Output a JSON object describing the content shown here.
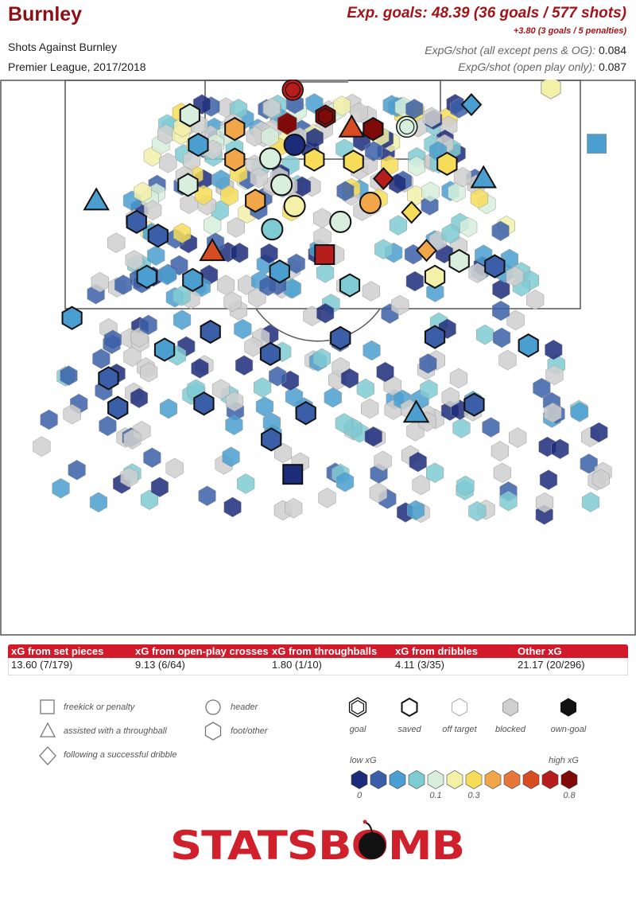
{
  "header": {
    "team": "Burnley",
    "subtitle": "Shots Against Burnley",
    "competition": "Premier League, 2017/2018",
    "xg_summary": "Exp. goals: 48.39 (36 goals / 577 shots)",
    "pens_summary": "+3.80 (3 goals / 5 penalties)",
    "rate_all_label": "ExpG/shot (all except pens & OG):",
    "rate_all_value": "0.084",
    "rate_open_label": "ExpG/shot (open play only):",
    "rate_open_value": "0.087"
  },
  "breakdown": {
    "columns": [
      {
        "label": "xG from set pieces",
        "value": "13.60 (7/179)"
      },
      {
        "label": "xG from open-play crosses",
        "value": "9.13 (6/64)"
      },
      {
        "label": "xG from throughballs",
        "value": "1.80 (1/10)"
      },
      {
        "label": "xG from dribbles",
        "value": "4.11 (3/35)"
      },
      {
        "label": "Other xG",
        "value": "21.17 (20/296)"
      }
    ]
  },
  "legend": {
    "shapes": {
      "freekick": "freekick or penalty",
      "throughball": "assisted with a throughball",
      "dribble": "following a successful dribble",
      "header": "header",
      "foot": "foot/other"
    },
    "outcomes": [
      "goal",
      "saved",
      "off target",
      "blocked",
      "own-goal"
    ],
    "scale": {
      "low_label": "low xG",
      "high_label": "high xG",
      "colors": [
        "#1c2b7a",
        "#3a5fa8",
        "#4a9fd0",
        "#7fcbd4",
        "#d7efdc",
        "#f3f0a8",
        "#f6dc58",
        "#f2a64a",
        "#e7763a",
        "#d84c22",
        "#b71d1d",
        "#7e0a0a"
      ],
      "tick_labels": [
        "0",
        "0.1",
        "0.3",
        "0.8"
      ]
    }
  },
  "chart_data": {
    "type": "scatter",
    "title": "Shots Against Burnley",
    "description_units": "shot locations in opponent half; x = metres from left touchline (0-68), y = metres from goal line (0-52.5)",
    "xlim": [
      0,
      68
    ],
    "ylim": [
      0,
      52.5
    ],
    "shots": [
      {
        "x": 31.3,
        "y": 0.9,
        "xg": 0.75,
        "shape": "header",
        "outcome": "goal"
      },
      {
        "x": 34.8,
        "y": 3.4,
        "xg": 0.85,
        "shape": "foot",
        "outcome": "goal"
      },
      {
        "x": 37.6,
        "y": 4.5,
        "xg": 0.65,
        "shape": "throughball",
        "outcome": "saved"
      },
      {
        "x": 39.9,
        "y": 4.6,
        "xg": 0.9,
        "shape": "foot",
        "outcome": "saved"
      },
      {
        "x": 30.7,
        "y": 4.1,
        "xg": 0.85,
        "shape": "foot",
        "outcome": "blocked"
      },
      {
        "x": 43.5,
        "y": 4.4,
        "xg": 0.12,
        "shape": "header",
        "outcome": "goal"
      },
      {
        "x": 31.5,
        "y": 6.1,
        "xg": 0.01,
        "shape": "header",
        "outcome": "saved"
      },
      {
        "x": 41.0,
        "y": 9.3,
        "xg": 0.7,
        "shape": "dribble",
        "outcome": "saved"
      },
      {
        "x": 34.7,
        "y": 16.5,
        "xg": 0.8,
        "shape": "freekick",
        "outcome": "saved"
      },
      {
        "x": 10.3,
        "y": 11.4,
        "xg": 0.04,
        "shape": "throughball",
        "outcome": "saved"
      },
      {
        "x": 22.7,
        "y": 16.2,
        "xg": 0.55,
        "shape": "throughball",
        "outcome": "saved"
      },
      {
        "x": 51.7,
        "y": 9.3,
        "xg": 0.06,
        "shape": "throughball",
        "outcome": "saved"
      },
      {
        "x": 45.6,
        "y": 16.1,
        "xg": 0.35,
        "shape": "dribble",
        "outcome": "saved"
      },
      {
        "x": 44.0,
        "y": 12.5,
        "xg": 0.25,
        "shape": "dribble",
        "outcome": "saved"
      },
      {
        "x": 50.4,
        "y": 2.3,
        "xg": 0.05,
        "shape": "dribble",
        "outcome": "saved"
      },
      {
        "x": 58.9,
        "y": 0.7,
        "xg": 0.18,
        "shape": "foot",
        "outcome": "off target"
      },
      {
        "x": 63.8,
        "y": 6.0,
        "xg": 0.04,
        "shape": "freekick",
        "outcome": "off target"
      },
      {
        "x": 20.3,
        "y": 3.3,
        "xg": 0.12,
        "shape": "foot",
        "outcome": "saved"
      },
      {
        "x": 25.1,
        "y": 4.6,
        "xg": 0.35,
        "shape": "foot",
        "outcome": "saved"
      },
      {
        "x": 21.2,
        "y": 6.1,
        "xg": 0.05,
        "shape": "foot",
        "outcome": "saved"
      },
      {
        "x": 25.1,
        "y": 7.5,
        "xg": 0.3,
        "shape": "foot",
        "outcome": "saved"
      },
      {
        "x": 28.9,
        "y": 7.4,
        "xg": 0.1,
        "shape": "header",
        "outcome": "saved"
      },
      {
        "x": 33.6,
        "y": 7.5,
        "xg": 0.2,
        "shape": "foot",
        "outcome": "saved"
      },
      {
        "x": 37.8,
        "y": 7.7,
        "xg": 0.25,
        "shape": "foot",
        "outcome": "saved"
      },
      {
        "x": 47.8,
        "y": 7.9,
        "xg": 0.2,
        "shape": "foot",
        "outcome": "saved"
      },
      {
        "x": 20.1,
        "y": 9.9,
        "xg": 0.12,
        "shape": "foot",
        "outcome": "saved"
      },
      {
        "x": 27.3,
        "y": 11.4,
        "xg": 0.35,
        "shape": "foot",
        "outcome": "saved"
      },
      {
        "x": 30.1,
        "y": 9.9,
        "xg": 0.1,
        "shape": "header",
        "outcome": "saved"
      },
      {
        "x": 31.5,
        "y": 11.9,
        "xg": 0.15,
        "shape": "header",
        "outcome": "saved"
      },
      {
        "x": 36.4,
        "y": 13.4,
        "xg": 0.12,
        "shape": "header",
        "outcome": "saved"
      },
      {
        "x": 39.6,
        "y": 11.6,
        "xg": 0.3,
        "shape": "header",
        "outcome": "saved"
      },
      {
        "x": 29.1,
        "y": 14.1,
        "xg": 0.07,
        "shape": "header",
        "outcome": "saved"
      },
      {
        "x": 14.6,
        "y": 13.4,
        "xg": 0.02,
        "shape": "foot",
        "outcome": "saved"
      },
      {
        "x": 16.9,
        "y": 14.7,
        "xg": 0.03,
        "shape": "foot",
        "outcome": "saved"
      },
      {
        "x": 15.7,
        "y": 18.6,
        "xg": 0.06,
        "shape": "foot",
        "outcome": "saved"
      },
      {
        "x": 20.6,
        "y": 18.9,
        "xg": 0.05,
        "shape": "foot",
        "outcome": "saved"
      },
      {
        "x": 29.9,
        "y": 18.1,
        "xg": 0.06,
        "shape": "foot",
        "outcome": "saved"
      },
      {
        "x": 37.4,
        "y": 19.4,
        "xg": 0.07,
        "shape": "foot",
        "outcome": "saved"
      },
      {
        "x": 46.5,
        "y": 18.6,
        "xg": 0.15,
        "shape": "foot",
        "outcome": "saved"
      },
      {
        "x": 49.1,
        "y": 17.1,
        "xg": 0.1,
        "shape": "foot",
        "outcome": "saved"
      },
      {
        "x": 52.9,
        "y": 17.6,
        "xg": 0.02,
        "shape": "foot",
        "outcome": "saved"
      },
      {
        "x": 7.7,
        "y": 22.5,
        "xg": 0.04,
        "shape": "foot",
        "outcome": "saved"
      },
      {
        "x": 17.6,
        "y": 25.5,
        "xg": 0.04,
        "shape": "foot",
        "outcome": "saved"
      },
      {
        "x": 22.5,
        "y": 23.8,
        "xg": 0.02,
        "shape": "foot",
        "outcome": "saved"
      },
      {
        "x": 28.9,
        "y": 25.9,
        "xg": 0.02,
        "shape": "foot",
        "outcome": "saved"
      },
      {
        "x": 36.4,
        "y": 24.4,
        "xg": 0.02,
        "shape": "foot",
        "outcome": "saved"
      },
      {
        "x": 46.5,
        "y": 24.3,
        "xg": 0.02,
        "shape": "foot",
        "outcome": "saved"
      },
      {
        "x": 56.5,
        "y": 25.1,
        "xg": 0.04,
        "shape": "foot",
        "outcome": "saved"
      },
      {
        "x": 11.6,
        "y": 28.2,
        "xg": 0.02,
        "shape": "foot",
        "outcome": "saved"
      },
      {
        "x": 21.8,
        "y": 30.6,
        "xg": 0.02,
        "shape": "foot",
        "outcome": "saved"
      },
      {
        "x": 32.7,
        "y": 31.5,
        "xg": 0.02,
        "shape": "foot",
        "outcome": "saved"
      },
      {
        "x": 44.5,
        "y": 31.5,
        "xg": 0.05,
        "shape": "throughball",
        "outcome": "saved"
      },
      {
        "x": 50.7,
        "y": 30.7,
        "xg": 0.02,
        "shape": "foot",
        "outcome": "saved"
      },
      {
        "x": 31.3,
        "y": 37.3,
        "xg": 0.01,
        "shape": "freekick",
        "outcome": "saved"
      },
      {
        "x": 12.6,
        "y": 31.0,
        "xg": 0.02,
        "shape": "foot",
        "outcome": "saved"
      },
      {
        "x": 29.0,
        "y": 34.0,
        "xg": 0.02,
        "shape": "foot",
        "outcome": "saved"
      }
    ]
  }
}
